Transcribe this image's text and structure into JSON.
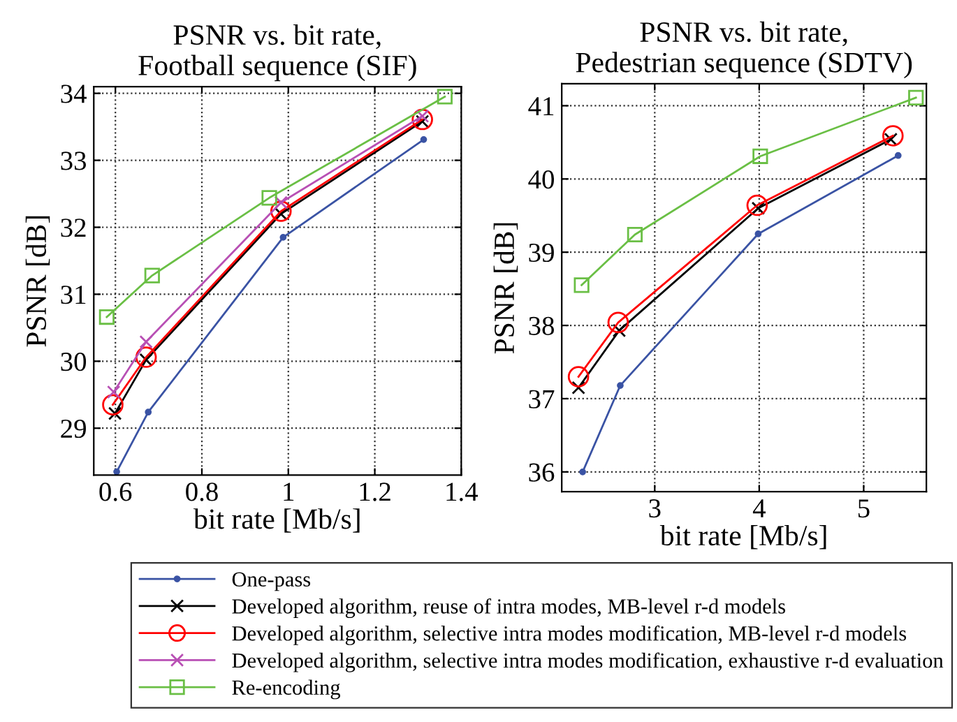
{
  "chart_data": [
    {
      "type": "line",
      "title": "PSNR vs. bit rate,\nFootball sequence (SIF)",
      "xlabel": "bit rate [Mb/s]",
      "ylabel": "PSNR [dB]",
      "xlim": [
        0.55,
        1.4
      ],
      "xticks": [
        0.6,
        0.8,
        1,
        1.2,
        1.4
      ],
      "ylim": [
        28.3,
        34.1
      ],
      "yticks": [
        29,
        30,
        31,
        32,
        33,
        34
      ],
      "grid": true,
      "legend": "bottom",
      "line_style": "solid",
      "series": [
        {
          "name": "One-pass",
          "color": "#3a53a4",
          "marker": "circle",
          "x": [
            0.603,
            0.676,
            0.988,
            1.313
          ],
          "values": [
            28.35,
            29.24,
            31.85,
            33.31
          ]
        },
        {
          "name": "Developed algorithm, reuse of intra modes, MB-level r-d models",
          "color": "#000000",
          "marker": "cross",
          "x": [
            0.599,
            0.671,
            0.983,
            1.31
          ],
          "values": [
            29.22,
            30.02,
            32.2,
            33.58
          ]
        },
        {
          "name": "Developed algorithm, selective intra modes modification, MB-level r-d models",
          "color": "#ff0000",
          "marker": "circle",
          "x": [
            0.594,
            0.671,
            0.983,
            1.31
          ],
          "values": [
            29.35,
            30.06,
            32.24,
            33.61
          ]
        },
        {
          "name": "Developed algorithm, selective intra modes modification, exhaustive r-d evaluation",
          "color": "#b84fb4",
          "marker": "cross",
          "x": [
            0.596,
            0.671,
            0.983,
            1.31
          ],
          "values": [
            29.54,
            30.29,
            32.37,
            33.66
          ]
        },
        {
          "name": "Re-encoding",
          "color": "#6abf45",
          "marker": "square",
          "x": [
            0.58,
            0.685,
            0.956,
            1.362
          ],
          "values": [
            30.66,
            31.28,
            32.44,
            33.95
          ]
        }
      ]
    },
    {
      "type": "line",
      "title": "PSNR vs. bit rate,\nPedestrian sequence (SDTV)",
      "xlabel": "bit rate [Mb/s]",
      "ylabel": "PSNR [dB]",
      "xlim": [
        2.11,
        5.6
      ],
      "xticks": [
        3,
        4,
        5
      ],
      "ylim": [
        35.73,
        41.3
      ],
      "yticks": [
        36,
        37,
        38,
        39,
        40,
        41
      ],
      "grid": true,
      "legend": "bottom",
      "line_style": "solid",
      "series": [
        {
          "name": "One-pass",
          "color": "#3a53a4",
          "marker": "circle",
          "x": [
            2.31,
            2.67,
            3.99,
            5.33
          ],
          "values": [
            36.0,
            37.18,
            39.25,
            40.32
          ]
        },
        {
          "name": "Developed algorithm, reuse of intra modes, MB-level r-d models",
          "color": "#000000",
          "marker": "cross",
          "x": [
            2.27,
            2.66,
            3.99,
            5.26
          ],
          "values": [
            37.15,
            37.93,
            39.6,
            40.54
          ]
        },
        {
          "name": "Developed algorithm, selective intra modes modification, MB-level r-d models",
          "color": "#ff0000",
          "marker": "circle",
          "x": [
            2.27,
            2.65,
            3.98,
            5.28
          ],
          "values": [
            37.3,
            38.04,
            39.64,
            40.59
          ]
        },
        {
          "name": "Re-encoding",
          "color": "#6abf45",
          "marker": "square",
          "x": [
            2.3,
            2.81,
            4.01,
            5.5
          ],
          "values": [
            38.55,
            39.24,
            40.31,
            41.11
          ]
        }
      ]
    }
  ]
}
